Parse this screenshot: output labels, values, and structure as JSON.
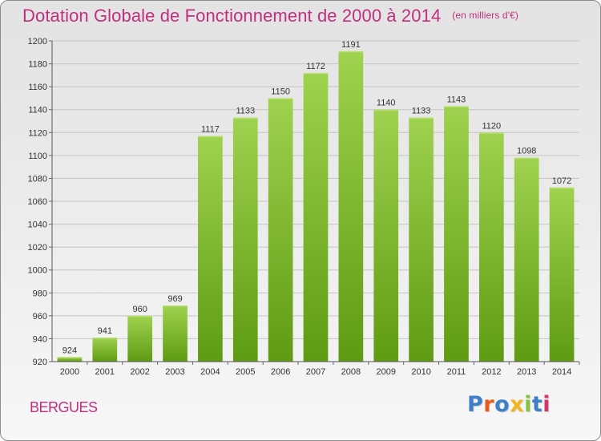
{
  "title": "Dotation Globale de Fonctionnement de 2000 à 2014",
  "unit_note": "(en milliers d'€)",
  "city": "BERGUES",
  "logo": {
    "text": "Proxiti",
    "letters": [
      {
        "char": "P",
        "color": "#3f7fc6"
      },
      {
        "char": "r",
        "color": "#e65c1c"
      },
      {
        "char": "o",
        "color": "#3f7fc6"
      },
      {
        "char": "x",
        "color": "#f0b51f"
      },
      {
        "char": "i",
        "color": "#87c33b"
      },
      {
        "char": "t",
        "color": "#3f7fc6"
      },
      {
        "char": "i",
        "color": "#d6336c"
      }
    ]
  },
  "colors": {
    "title": "#c0307f",
    "bar_top": "#9fd24f",
    "bar_bottom": "#5e9b12",
    "grid": "#c4c4c4"
  },
  "chart_data": {
    "type": "bar",
    "title": "Dotation Globale de Fonctionnement de 2000 à 2014",
    "subtitle": "(en milliers d'€)",
    "xlabel": "",
    "ylabel": "",
    "categories": [
      "2000",
      "2001",
      "2002",
      "2003",
      "2004",
      "2005",
      "2006",
      "2007",
      "2008",
      "2009",
      "2010",
      "2011",
      "2012",
      "2013",
      "2014"
    ],
    "values": [
      924,
      941,
      960,
      969,
      1117,
      1133,
      1150,
      1172,
      1191,
      1140,
      1133,
      1143,
      1120,
      1098,
      1072
    ],
    "ylim": [
      920,
      1200
    ],
    "yticks": [
      920,
      940,
      960,
      980,
      1000,
      1020,
      1040,
      1060,
      1080,
      1100,
      1120,
      1140,
      1160,
      1180,
      1200
    ],
    "grid": true,
    "data_labels": true
  }
}
